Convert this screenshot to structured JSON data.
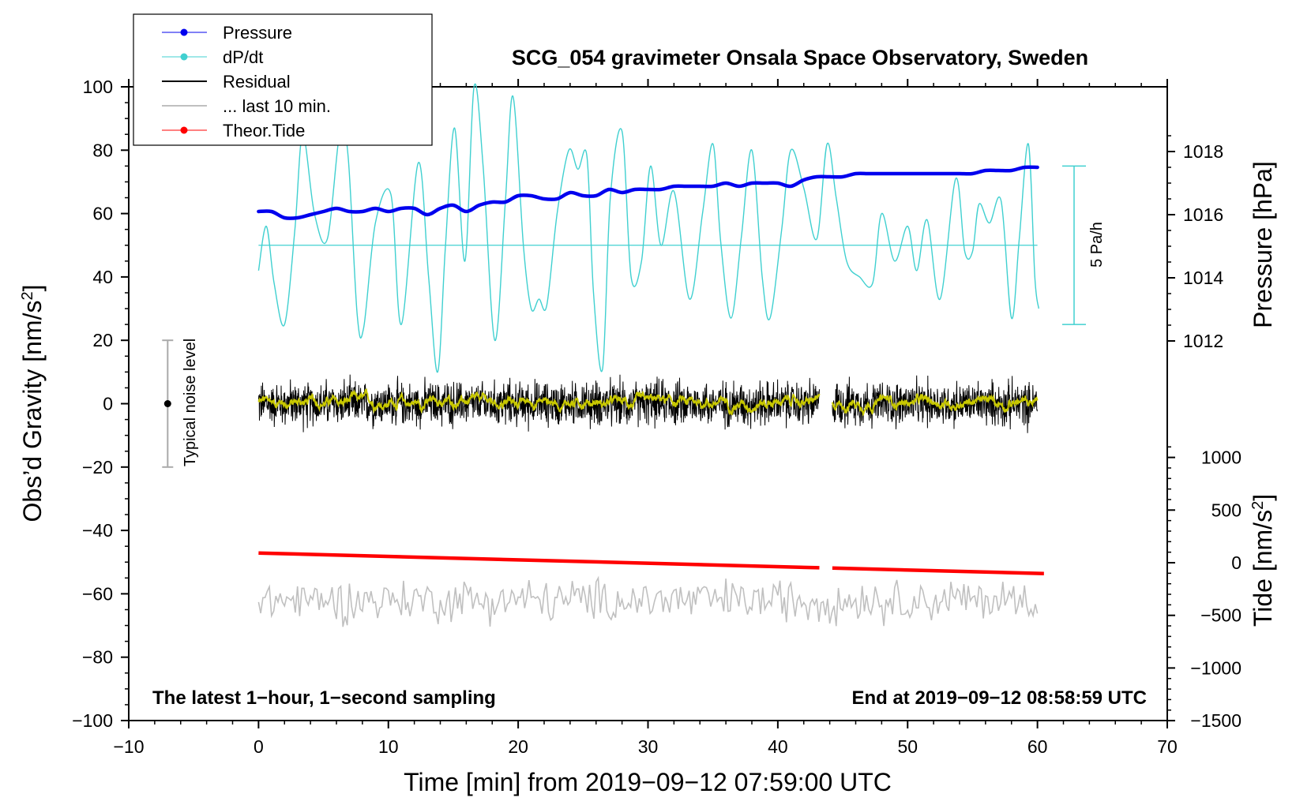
{
  "chart_data": {
    "type": "line",
    "title": "SCG_054 gravimeter Onsala Space Observatory, Sweden",
    "xlabel": "Time [min] from 2019−09−12 07:59:00 UTC",
    "ylabel_left": "Obs’d Gravity [nm/s2]",
    "ylabel_right_pressure": "Pressure [hPa]",
    "ylabel_right_tide": "Tide [nm/s2]",
    "xlim": [
      -10,
      70
    ],
    "ylim": [
      -100,
      100
    ],
    "x_ticks": [
      "−10",
      "0",
      "10",
      "20",
      "30",
      "40",
      "50",
      "60",
      "70"
    ],
    "y_ticks": [
      "100",
      "80",
      "60",
      "40",
      "20",
      "0",
      "−20",
      "−40",
      "−60",
      "−80",
      "−100"
    ],
    "pressure_ticks": [
      "1018",
      "1016",
      "1014",
      "1012"
    ],
    "tide_ticks": [
      "1000",
      "500",
      "0",
      "−500",
      "−1000",
      "−1500"
    ],
    "footer_left": "The latest 1−hour, 1−second sampling",
    "footer_right": "End at 2019−09−12 08:58:59 UTC",
    "noise_label": "Typical noise level",
    "noise_bar": [
      -20,
      20
    ],
    "rate_label": "5 Pa/h",
    "legend": [
      "Pressure",
      "dP/dt",
      "Residual",
      "... last 10 min.",
      "Theor.Tide"
    ],
    "colors": {
      "pressure": "#0000ee",
      "dpdt": "#40d0d0",
      "residual": "#000000",
      "residual_smooth": "#c8c800",
      "last10": "#c0c0c0",
      "tide": "#ff0000",
      "noise": "#aaaaaa"
    },
    "series": [
      {
        "name": "Pressure",
        "unit": "hPa",
        "x": [
          0,
          1,
          2,
          3,
          4,
          5,
          6,
          7,
          8,
          9,
          10,
          11,
          12,
          13,
          14,
          15,
          16,
          17,
          18,
          19,
          20,
          21,
          22,
          23,
          24,
          25,
          26,
          27,
          28,
          29,
          30,
          31,
          32,
          33,
          34,
          35,
          36,
          37,
          38,
          39,
          40,
          41,
          42,
          43,
          44,
          45,
          46,
          47,
          48,
          49,
          50,
          51,
          52,
          53,
          54,
          55,
          56,
          57,
          58,
          59,
          60
        ],
        "values": [
          1016.1,
          1016.1,
          1015.9,
          1015.9,
          1016.0,
          1016.1,
          1016.2,
          1016.1,
          1016.1,
          1016.2,
          1016.1,
          1016.2,
          1016.2,
          1016.0,
          1016.2,
          1016.3,
          1016.1,
          1016.3,
          1016.4,
          1016.4,
          1016.6,
          1016.6,
          1016.5,
          1016.5,
          1016.7,
          1016.6,
          1016.6,
          1016.8,
          1016.7,
          1016.8,
          1016.8,
          1016.8,
          1016.9,
          1016.9,
          1016.9,
          1016.9,
          1017.0,
          1016.9,
          1017.0,
          1017.0,
          1017.0,
          1016.9,
          1017.1,
          1017.2,
          1017.2,
          1017.2,
          1017.3,
          1017.3,
          1017.3,
          1017.3,
          1017.3,
          1017.3,
          1017.3,
          1017.3,
          1017.3,
          1017.3,
          1017.4,
          1017.4,
          1017.4,
          1017.5,
          1017.5
        ]
      },
      {
        "name": "dP/dt",
        "unit": "nm/s2 axis units",
        "x": [
          0,
          0.6,
          1.2,
          2.0,
          2.8,
          3.4,
          4.3,
          5.3,
          6.3,
          6.9,
          7.6,
          8.1,
          9.0,
          10.2,
          11.0,
          12.3,
          13.1,
          13.8,
          14.4,
          15.1,
          15.9,
          16.6,
          17.3,
          18.2,
          19.0,
          19.6,
          20.4,
          21.0,
          21.6,
          22.2,
          23.0,
          23.9,
          24.6,
          25.3,
          25.8,
          26.5,
          27.1,
          28.0,
          28.7,
          29.5,
          30.2,
          31.0,
          32.0,
          33.2,
          34.2,
          35.0,
          35.6,
          36.4,
          37.2,
          38.0,
          38.8,
          39.4,
          40.3,
          41.0,
          42.0,
          43.0,
          43.8,
          44.5,
          45.3,
          46.3,
          47.3,
          48.0,
          49.0,
          50.0,
          50.7,
          51.5,
          52.5,
          53.7,
          54.4,
          55.0,
          55.5,
          56.3,
          57.2,
          58.0,
          58.6,
          59.3,
          59.8,
          60.1
        ],
        "values": [
          42,
          56,
          38,
          25,
          55,
          85,
          60,
          52,
          87,
          78,
          28,
          24,
          57,
          66,
          25,
          76,
          40,
          10,
          50,
          87,
          45,
          100,
          75,
          20,
          63,
          97,
          50,
          30,
          33,
          31,
          60,
          80,
          74,
          78,
          35,
          11,
          65,
          86,
          40,
          45,
          75,
          50,
          67,
          33,
          60,
          82,
          51,
          27,
          53,
          80,
          40,
          27,
          55,
          80,
          68,
          52,
          82,
          65,
          45,
          40,
          38,
          60,
          45,
          56,
          42,
          58,
          33,
          71,
          48,
          48,
          63,
          57,
          64,
          27,
          52,
          82,
          40,
          30
        ]
      },
      {
        "name": "Residual",
        "unit": "nm/s2",
        "x_range": [
          0,
          60
        ],
        "gap": [
          43.2,
          44.2
        ],
        "approx_range": [
          -11,
          11
        ]
      },
      {
        "name": "... last 10 min.",
        "unit": "nm/s2",
        "x_range": [
          0,
          60
        ],
        "offset": -62,
        "approx_range": [
          -72,
          -53
        ]
      },
      {
        "name": "Theor.Tide",
        "unit": "nm/s2",
        "x": [
          0,
          43.2,
          44.2,
          60.5
        ],
        "values": [
          92,
          -48,
          -51,
          -103
        ]
      }
    ]
  }
}
